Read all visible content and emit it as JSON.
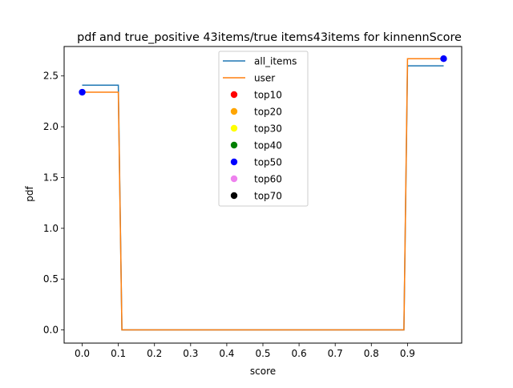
{
  "chart_data": {
    "type": "line",
    "title": "pdf and true_positive 43items/true items43items for kinnennScore",
    "xlabel": "score",
    "ylabel": "pdf",
    "xlim": [
      -0.05,
      1.05
    ],
    "ylim": [
      -0.13,
      2.79
    ],
    "xticks": [
      0.0,
      0.1,
      0.2,
      0.3,
      0.4,
      0.5,
      0.6,
      0.7,
      0.8,
      0.9
    ],
    "xtick_labels": [
      "0.0",
      "0.1",
      "0.2",
      "0.3",
      "0.4",
      "0.5",
      "0.6",
      "0.7",
      "0.8",
      "0.9"
    ],
    "yticks": [
      0.0,
      0.5,
      1.0,
      1.5,
      2.0,
      2.5
    ],
    "ytick_labels": [
      "0.0",
      "0.5",
      "1.0",
      "1.5",
      "2.0",
      "2.5"
    ],
    "grid": false,
    "legend_position": "upper center",
    "series": [
      {
        "name": "all_items",
        "kind": "line",
        "color": "#1f77b4",
        "x": [
          0.0,
          0.1,
          0.11,
          0.89,
          0.9,
          1.0
        ],
        "y": [
          2.41,
          2.41,
          0.0,
          0.0,
          2.6,
          2.6
        ]
      },
      {
        "name": "user",
        "kind": "line",
        "color": "#ff7f0e",
        "x": [
          0.0,
          0.1,
          0.11,
          0.89,
          0.9,
          1.0
        ],
        "y": [
          2.34,
          2.34,
          0.0,
          0.0,
          2.67,
          2.67
        ]
      },
      {
        "name": "top10",
        "kind": "scatter",
        "color": "#ff0000",
        "x": [],
        "y": []
      },
      {
        "name": "top20",
        "kind": "scatter",
        "color": "#ffa500",
        "x": [],
        "y": []
      },
      {
        "name": "top30",
        "kind": "scatter",
        "color": "#ffff00",
        "x": [],
        "y": []
      },
      {
        "name": "top40",
        "kind": "scatter",
        "color": "#008000",
        "x": [],
        "y": []
      },
      {
        "name": "top50",
        "kind": "scatter",
        "color": "#0000ff",
        "x": [
          0.0,
          1.0
        ],
        "y": [
          2.34,
          2.67
        ]
      },
      {
        "name": "top60",
        "kind": "scatter",
        "color": "#ee82ee",
        "x": [],
        "y": []
      },
      {
        "name": "top70",
        "kind": "scatter",
        "color": "#000000",
        "x": [],
        "y": []
      }
    ]
  }
}
